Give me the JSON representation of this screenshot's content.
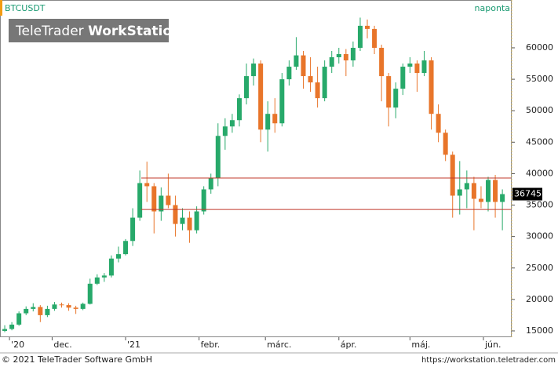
{
  "chart_data": {
    "type": "candlestick",
    "title": "BTCUSDT",
    "subtitle": "naponta",
    "watermark": [
      "TeleTrader",
      "WorkStation"
    ],
    "footer_left": "© 2021 TeleTrader Software GmbH",
    "footer_right": "https://workstation.teletrader.com",
    "up_color": "#27a96a",
    "down_color": "#e8752a",
    "level_color": "#c0392b",
    "levels": [
      39300,
      34300
    ],
    "last_price": 36745,
    "xlim": [
      -4,
      211.6
    ],
    "xticks": [
      {
        "value": 0,
        "label": "'20"
      },
      {
        "value": 18,
        "label": "dec."
      },
      {
        "value": 49,
        "label": "'21"
      },
      {
        "value": 80,
        "label": "febr."
      },
      {
        "value": 108,
        "label": "márc."
      },
      {
        "value": 139,
        "label": "ápr."
      },
      {
        "value": 169,
        "label": "máj."
      },
      {
        "value": 200,
        "label": "jún."
      }
    ],
    "ylim": [
      14000,
      67600
    ],
    "yticks": [
      15000,
      20000,
      25000,
      30000,
      35000,
      40000,
      45000,
      50000,
      55000,
      60000
    ],
    "x": [
      -2,
      1,
      4,
      7,
      10,
      13,
      16,
      19,
      22,
      25,
      28,
      31,
      34,
      37,
      40,
      43,
      46,
      49,
      52,
      55,
      58,
      61,
      64,
      67,
      70,
      73,
      76,
      79,
      82,
      85,
      88,
      91,
      94,
      97,
      100,
      103,
      106,
      109,
      112,
      115,
      118,
      121,
      124,
      127,
      130,
      133,
      136,
      139,
      142,
      145,
      148,
      151,
      154,
      157,
      160,
      163,
      166,
      169,
      172,
      175,
      178,
      181,
      184,
      187,
      190,
      193,
      196,
      199,
      202,
      205,
      208
    ],
    "open": [
      15000,
      15300,
      16000,
      17800,
      18500,
      18800,
      17500,
      18500,
      19200,
      19100,
      18700,
      18500,
      19300,
      22500,
      23500,
      23800,
      26500,
      27200,
      29300,
      33000,
      38500,
      38000,
      34000,
      36500,
      35000,
      32000,
      33000,
      31000,
      34000,
      37500,
      39300,
      46000,
      47500,
      48500,
      52000,
      55500,
      57500,
      47000,
      49500,
      48000,
      55000,
      57000,
      58800,
      55500,
      54500,
      52000,
      57000,
      58500,
      59000,
      58000,
      60000,
      63500,
      63000,
      60000,
      55500,
      50500,
      53500,
      57000,
      57500,
      56000,
      58000,
      49500,
      46500,
      43000,
      36500,
      37500,
      38500,
      36000,
      35500,
      39000,
      35500
    ],
    "high": [
      15900,
      16400,
      18100,
      18900,
      19400,
      19100,
      19000,
      19600,
      19500,
      19400,
      19000,
      19500,
      23300,
      24000,
      24200,
      27000,
      28400,
      29600,
      34500,
      40500,
      41900,
      38500,
      37800,
      40000,
      36500,
      34500,
      34000,
      34800,
      38000,
      40000,
      48000,
      48800,
      49500,
      52600,
      57500,
      58300,
      58000,
      51500,
      52000,
      56000,
      58000,
      61700,
      59500,
      58500,
      57000,
      58000,
      59500,
      60000,
      59800,
      61000,
      64800,
      64500,
      63500,
      60500,
      56000,
      54500,
      57500,
      58500,
      58000,
      59500,
      58500,
      51000,
      47000,
      43500,
      42000,
      40500,
      39500,
      38000,
      39500,
      39800,
      37500
    ],
    "low": [
      14800,
      15100,
      15800,
      17500,
      18100,
      16400,
      17200,
      18200,
      18700,
      18200,
      17700,
      18300,
      19200,
      22300,
      22800,
      23500,
      25900,
      27000,
      28500,
      32500,
      35500,
      30500,
      32500,
      34500,
      30000,
      31000,
      29000,
      30500,
      33500,
      36800,
      38000,
      43800,
      46500,
      47500,
      51000,
      54000,
      45000,
      43500,
      46500,
      47500,
      54000,
      56500,
      53500,
      53000,
      50500,
      51500,
      56000,
      57500,
      55500,
      57000,
      59500,
      61500,
      59000,
      51500,
      47500,
      48800,
      52500,
      56000,
      53000,
      55500,
      47000,
      45000,
      42000,
      33000,
      33500,
      34500,
      31000,
      34500,
      34000,
      33000,
      31000
    ],
    "close": [
      15300,
      16000,
      17800,
      18500,
      18800,
      17500,
      18500,
      19200,
      19100,
      18700,
      18500,
      19300,
      22500,
      23500,
      23800,
      26500,
      27200,
      29300,
      33000,
      38500,
      38000,
      34000,
      36500,
      35000,
      32000,
      33000,
      31000,
      34000,
      37500,
      39300,
      46000,
      47500,
      48500,
      52000,
      55500,
      57500,
      47000,
      49500,
      48000,
      55000,
      57000,
      58800,
      55500,
      54500,
      52000,
      57000,
      58500,
      59000,
      58000,
      60000,
      63500,
      63000,
      60000,
      55500,
      50500,
      53500,
      57000,
      57500,
      56000,
      58000,
      49500,
      46500,
      43000,
      36500,
      37500,
      38500,
      36000,
      35500,
      39000,
      35500,
      36745
    ]
  }
}
